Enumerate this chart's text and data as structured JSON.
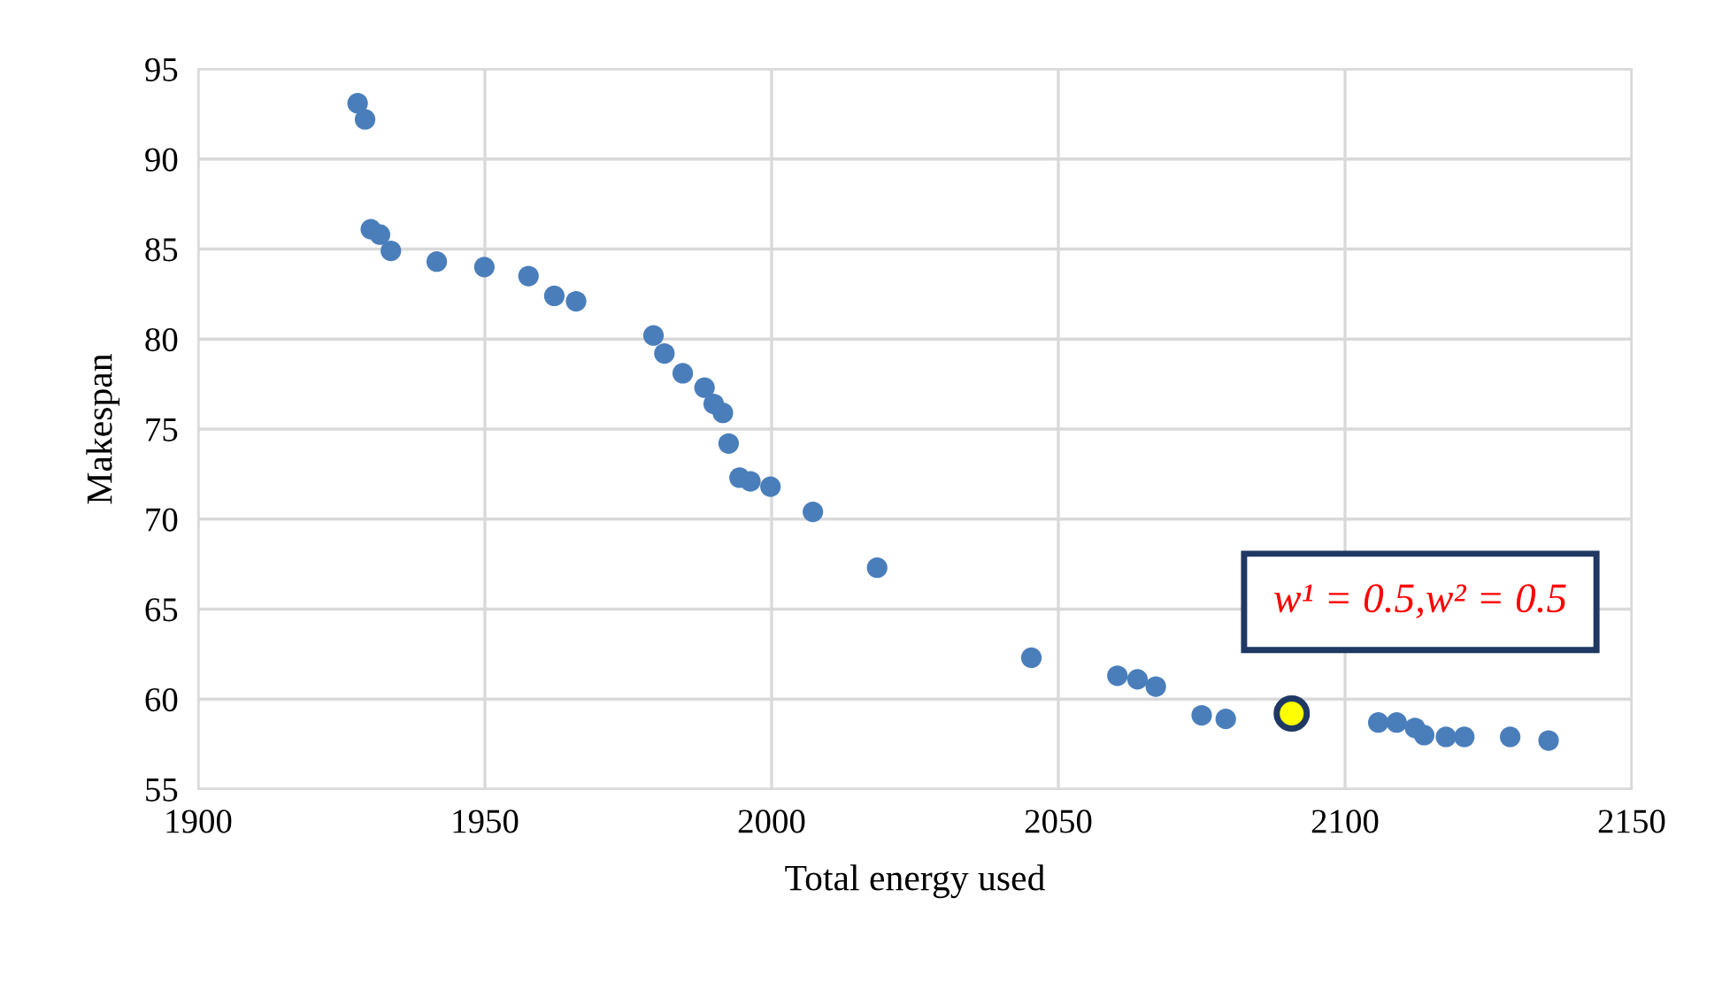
{
  "chart_data": {
    "type": "scatter",
    "xlabel": "Total energy used",
    "ylabel": "Makespan",
    "xlim": [
      1900,
      2150
    ],
    "xticks": [
      1900,
      1950,
      2000,
      2050,
      2100,
      2150
    ],
    "ylim": [
      55,
      95
    ],
    "yticks": [
      55,
      60,
      65,
      70,
      75,
      80,
      85,
      90,
      95
    ],
    "grid": true,
    "marker": "circle",
    "series": [
      {
        "color": "#4a7ebb",
        "x": [
          1927.8,
          1929.1,
          1930.1,
          1931.7,
          1933.6,
          1941.6,
          1949.9,
          1957.6,
          1962.1,
          1965.9,
          1979.4,
          1981.3,
          1984.5,
          1988.3,
          1989.9,
          1991.5,
          1992.5,
          1994.4,
          1996.3,
          1999.8,
          2007.2,
          2018.4,
          2045.3,
          2060.3,
          2063.8,
          2067.0,
          2075.0,
          2079.2,
          2105.8,
          2109.0,
          2112.2,
          2113.8,
          2117.6,
          2120.8,
          2128.8,
          2135.5
        ],
        "values": [
          93.1,
          92.2,
          86.1,
          85.8,
          84.9,
          84.3,
          84.0,
          83.5,
          82.4,
          82.1,
          80.2,
          79.2,
          78.1,
          77.3,
          76.4,
          75.9,
          74.2,
          72.3,
          72.1,
          71.8,
          70.4,
          67.3,
          62.3,
          61.3,
          61.1,
          60.7,
          59.1,
          58.9,
          58.7,
          58.7,
          58.4,
          58.0,
          57.9,
          57.9,
          57.9,
          57.7
        ]
      },
      {
        "color": "#ffff00",
        "x": [
          2090.7
        ],
        "values": [
          59.2
        ]
      }
    ],
    "annotations": [
      "w¹ = 0.5,w² = 0.5"
    ]
  }
}
